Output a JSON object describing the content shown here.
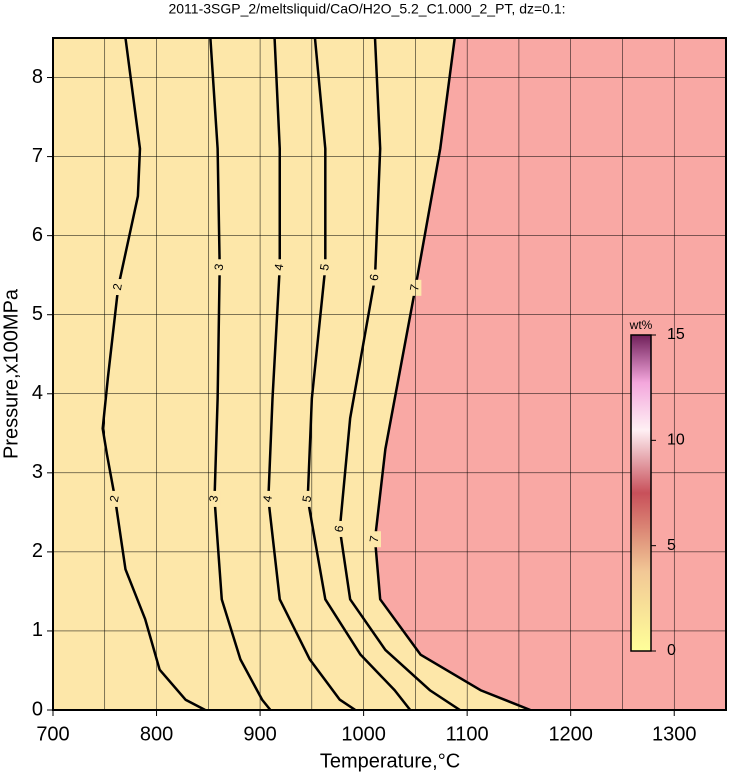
{
  "chart_data": {
    "type": "contour",
    "title": "2011-3SGP_2/meltsliquid/CaO/H2O_5.2_C1.000_2_PT, dz=0.1:",
    "x_label": "Temperature,°C",
    "y_label": "Pressure,x100MPa",
    "xlim": [
      700,
      1350
    ],
    "ylim": [
      0,
      8.5
    ],
    "xticks": [
      700,
      800,
      900,
      1000,
      1100,
      1200,
      1300
    ],
    "yticks": [
      0,
      1,
      2,
      3,
      4,
      5,
      6,
      7,
      8
    ],
    "xgrid": [
      750,
      800,
      850,
      900,
      950,
      1000,
      1050,
      1100,
      1150,
      1200,
      1250,
      1300
    ],
    "grid": true,
    "background_color": "#fde7a9",
    "fill_regions": [
      {
        "color": "#f9a8a4",
        "x": [
          1088,
          1350,
          1350,
          1161,
          1113,
          1055,
          1016,
          1011,
          1021,
          1050,
          1074
        ],
        "y": [
          8.5,
          8.5,
          0,
          0,
          0.25,
          0.7,
          1.4,
          2.16,
          3.3,
          5.34,
          7.1
        ]
      }
    ],
    "contours": [
      {
        "level": 2,
        "x": [
          770,
          784,
          782,
          763,
          753,
          748,
          752,
          760,
          770,
          789,
          803,
          828,
          847
        ],
        "y": [
          8.5,
          7.1,
          6.5,
          5.35,
          4.2,
          3.56,
          3.24,
          2.67,
          1.78,
          1.15,
          0.51,
          0.13,
          0
        ]
      },
      {
        "level": 3,
        "x": [
          852,
          859,
          861,
          859,
          856,
          863,
          881,
          902,
          910
        ],
        "y": [
          8.5,
          7.1,
          5.6,
          3.94,
          2.67,
          1.4,
          0.64,
          0.13,
          0
        ]
      },
      {
        "level": 4,
        "x": [
          914,
          919,
          919,
          912,
          908,
          919,
          948,
          977,
          992
        ],
        "y": [
          8.5,
          7.1,
          5.6,
          3.94,
          2.67,
          1.4,
          0.64,
          0.13,
          0
        ]
      },
      {
        "level": 5,
        "x": [
          953,
          963,
          963,
          950,
          946,
          963,
          997,
          1030,
          1045
        ],
        "y": [
          8.5,
          7.1,
          5.6,
          3.94,
          2.67,
          1.4,
          0.7,
          0.25,
          0
        ]
      },
      {
        "level": 6,
        "x": [
          1011,
          1016,
          1011,
          987,
          977,
          987,
          1021,
          1064,
          1093
        ],
        "y": [
          8.5,
          7.1,
          5.47,
          3.69,
          2.29,
          1.4,
          0.76,
          0.25,
          0
        ]
      },
      {
        "level": 7,
        "x": [
          1088,
          1074,
          1050,
          1021,
          1011,
          1016,
          1055,
          1113,
          1161
        ],
        "y": [
          8.5,
          7.1,
          5.34,
          3.3,
          2.16,
          1.4,
          0.7,
          0.25,
          0
        ]
      }
    ],
    "colorbar": {
      "label": "wt%",
      "lim": [
        0,
        15
      ],
      "ticks": [
        0,
        5,
        10,
        15
      ]
    }
  }
}
